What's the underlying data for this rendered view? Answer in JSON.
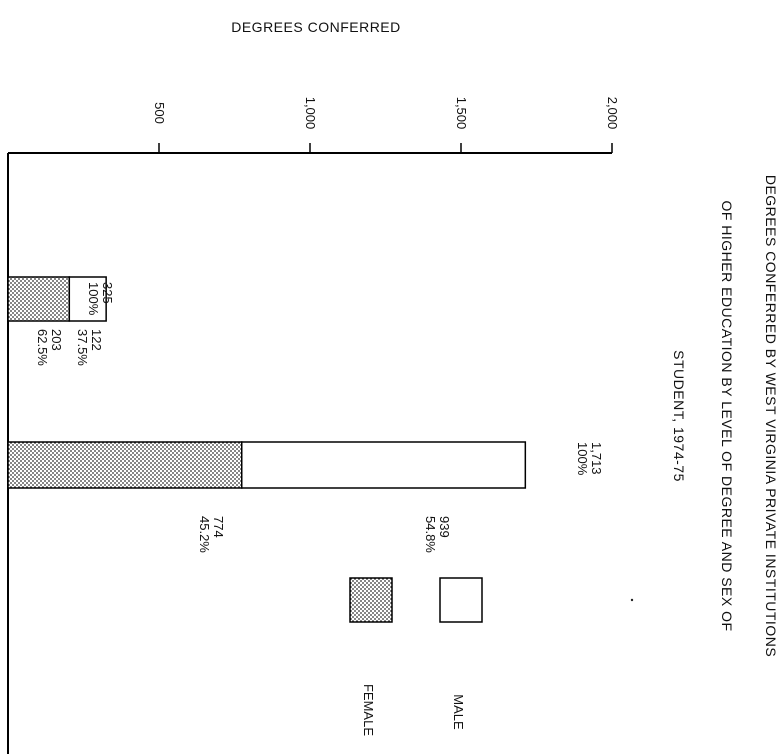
{
  "chart_data": {
    "type": "bar",
    "stacked": true,
    "orientation": "rotated-90",
    "title_lines": [
      "DEGREES CONFERRED BY WEST VIRGINIA PRIVATE INSTITUTIONS",
      "OF HIGHER EDUCATION BY LEVEL OF DEGREE AND SEX OF",
      "STUDENT, 1974-75"
    ],
    "value_axis_label": "DEGREES CONFERRED",
    "value_ticks": [
      {
        "value": 500,
        "label": "500"
      },
      {
        "value": 1000,
        "label": "1,000"
      },
      {
        "value": 1500,
        "label": "1,500"
      },
      {
        "value": 2000,
        "label": "2,000"
      }
    ],
    "value_range": [
      0,
      2000
    ],
    "categories": [
      "",
      ""
    ],
    "series": [
      {
        "name": "FEMALE",
        "pattern": "dotted",
        "values": [
          203,
          774
        ],
        "labels": [
          "203",
          "774"
        ],
        "pct_labels": [
          "62.5%",
          "45.2%"
        ]
      },
      {
        "name": "MALE",
        "pattern": "white",
        "values": [
          122,
          939
        ],
        "labels": [
          "122",
          "939"
        ],
        "pct_labels": [
          "37.5%",
          "54.8%"
        ]
      }
    ],
    "totals": [
      {
        "value": 325,
        "label": "325",
        "pct": "100%"
      },
      {
        "value": 1713,
        "label": "1,713",
        "pct": "100%"
      }
    ],
    "legend": {
      "placement": "right",
      "entries": [
        "MALE",
        "FEMALE"
      ]
    }
  }
}
